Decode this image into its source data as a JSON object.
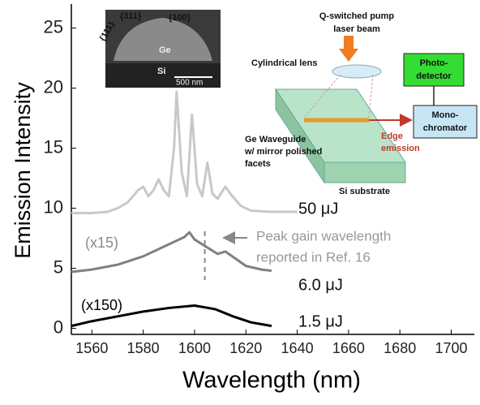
{
  "chart_data": {
    "type": "line",
    "x_label": "Wavelength (nm)",
    "y_label": "Emission Intensity",
    "xlim": [
      1552,
      1709
    ],
    "xticks": [
      1560,
      1580,
      1600,
      1620,
      1640,
      1660,
      1680,
      1700
    ],
    "ylim": [
      -0.5,
      27
    ],
    "yticks": [
      0,
      5,
      10,
      15,
      20,
      25
    ],
    "series": [
      {
        "name": "50 μJ",
        "color": "#c8c8c8",
        "x": [
          1552,
          1560,
          1566,
          1570,
          1574,
          1578,
          1580,
          1582,
          1584,
          1586,
          1588,
          1590,
          1592,
          1593,
          1595,
          1597,
          1599,
          1601,
          1603,
          1605,
          1607,
          1609,
          1612,
          1614,
          1618,
          1622,
          1630,
          1640
        ],
        "values": [
          9.6,
          9.6,
          9.7,
          10.0,
          10.5,
          11.5,
          11.8,
          11.0,
          11.5,
          12.4,
          11.5,
          11.0,
          15,
          19.7,
          13,
          11,
          17.8,
          12,
          11,
          13.8,
          11.2,
          10.8,
          11.8,
          11.2,
          10.2,
          9.8,
          9.7,
          9.7
        ]
      },
      {
        "name": "6.0 μJ",
        "color": "#7f7f7f",
        "x": [
          1552,
          1560,
          1570,
          1580,
          1590,
          1596,
          1598,
          1600,
          1603,
          1606,
          1609,
          1612,
          1616,
          1620,
          1626,
          1630
        ],
        "values": [
          4.7,
          4.9,
          5.3,
          6.0,
          7.0,
          7.6,
          8.0,
          7.4,
          7.0,
          6.6,
          6.2,
          6.4,
          5.8,
          5.2,
          4.9,
          4.8
        ]
      },
      {
        "name": "1.5 μJ",
        "color": "#000000",
        "x": [
          1552,
          1560,
          1570,
          1580,
          1590,
          1600,
          1608,
          1615,
          1622,
          1630
        ],
        "values": [
          0.2,
          0.6,
          1.0,
          1.4,
          1.7,
          1.9,
          1.6,
          1.0,
          0.5,
          0.2
        ]
      }
    ],
    "scale_labels": [
      "(x15)",
      "(x150)"
    ],
    "reference_line": 1604,
    "reference_note": [
      "Peak gain wavelength",
      "reported in Ref. 16"
    ],
    "sem_inset": {
      "facets": [
        "{111}",
        "{311}",
        "{100}"
      ],
      "ge": "Ge",
      "si": "Si",
      "scale": "500 nm"
    },
    "setup_inset": {
      "pump": [
        "Q-switched pump",
        "laser beam"
      ],
      "lens": "Cylindrical lens",
      "detector": [
        "Photo-",
        "detector"
      ],
      "mono": [
        "Mono-",
        "chromator"
      ],
      "waveguide": [
        "Ge Waveguide",
        "w/ mirror polished",
        "facets"
      ],
      "edge": [
        "Edge",
        "emission"
      ],
      "substrate": "Si substrate"
    }
  }
}
